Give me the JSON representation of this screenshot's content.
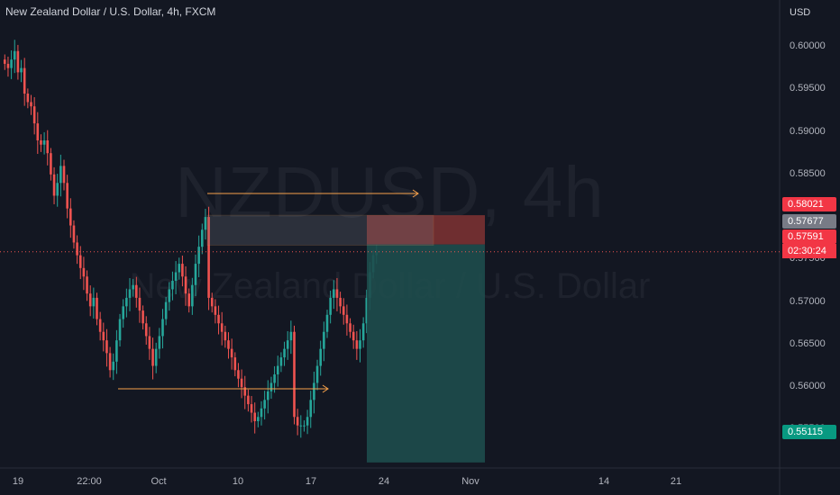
{
  "header": {
    "title": "New Zealand Dollar / U.S. Dollar, 4h, FXCM"
  },
  "watermark": {
    "line1": "NZDUSD, 4h",
    "line2": "New Zealand Dollar / U.S. Dollar"
  },
  "axis": {
    "currency": "USD"
  },
  "colors": {
    "bg": "#131722",
    "up": "#26a69a",
    "down": "#ef5350",
    "arrow": "#f7a14a",
    "stop_zone": "#803232",
    "target_zone": "#1e4c4d"
  },
  "price_tags": {
    "stop": {
      "value": "0.58021",
      "color": "#f23645"
    },
    "entry": {
      "value": "0.57677",
      "color": "#787b86"
    },
    "last": {
      "value": "0.57591",
      "countdown": "02:30:24",
      "color": "#f23645"
    },
    "target": {
      "value": "0.55115",
      "color": "#089981"
    }
  },
  "chart_data": {
    "type": "candlestick",
    "title": "New Zealand Dollar / U.S. Dollar, 4h, FXCM",
    "ylabel": "USD",
    "ylim": [
      0.5505,
      0.6055
    ],
    "y_ticks": [
      0.6,
      0.595,
      0.59,
      0.585,
      0.575,
      0.57,
      0.565,
      0.56,
      0.555
    ],
    "y_tick_labels": [
      "0.60000",
      "0.59500",
      "0.59000",
      "0.58500",
      "0.57500",
      "0.57000",
      "0.56500",
      "0.56000",
      "0.55500"
    ],
    "x_tick_labels": [
      "19",
      "22:00",
      "Oct",
      "10",
      "17",
      "24",
      "Nov",
      "14",
      "21"
    ],
    "last_price": 0.57591,
    "closes": [
      0.598,
      0.5975,
      0.5985,
      0.5995,
      0.597,
      0.5975,
      0.5945,
      0.5935,
      0.593,
      0.591,
      0.589,
      0.5885,
      0.589,
      0.5875,
      0.585,
      0.5825,
      0.584,
      0.586,
      0.584,
      0.581,
      0.579,
      0.577,
      0.5755,
      0.574,
      0.573,
      0.571,
      0.5695,
      0.5705,
      0.568,
      0.5665,
      0.5655,
      0.564,
      0.562,
      0.563,
      0.5655,
      0.568,
      0.5695,
      0.5705,
      0.5715,
      0.572,
      0.5705,
      0.569,
      0.5675,
      0.566,
      0.5645,
      0.5625,
      0.5645,
      0.566,
      0.568,
      0.57,
      0.5715,
      0.5725,
      0.5735,
      0.5745,
      0.573,
      0.571,
      0.5695,
      0.572,
      0.5745,
      0.5765,
      0.5785,
      0.58,
      0.5705,
      0.5695,
      0.5685,
      0.5675,
      0.5665,
      0.5655,
      0.5645,
      0.5635,
      0.562,
      0.561,
      0.56,
      0.559,
      0.558,
      0.557,
      0.556,
      0.5565,
      0.5575,
      0.5585,
      0.5595,
      0.5605,
      0.5615,
      0.5625,
      0.5635,
      0.5645,
      0.5655,
      0.5665,
      0.5565,
      0.5555,
      0.5555,
      0.5555,
      0.5565,
      0.5585,
      0.5605,
      0.5625,
      0.5645,
      0.5665,
      0.5685,
      0.5705,
      0.5715,
      0.5705,
      0.5695,
      0.5685,
      0.5675,
      0.5665,
      0.5655,
      0.5645,
      0.5655,
      0.5675,
      0.5705,
      0.5735,
      0.5755,
      0.5759
    ],
    "trade": {
      "entry": 0.57677,
      "stop": 0.58021,
      "target": 0.55115
    }
  }
}
